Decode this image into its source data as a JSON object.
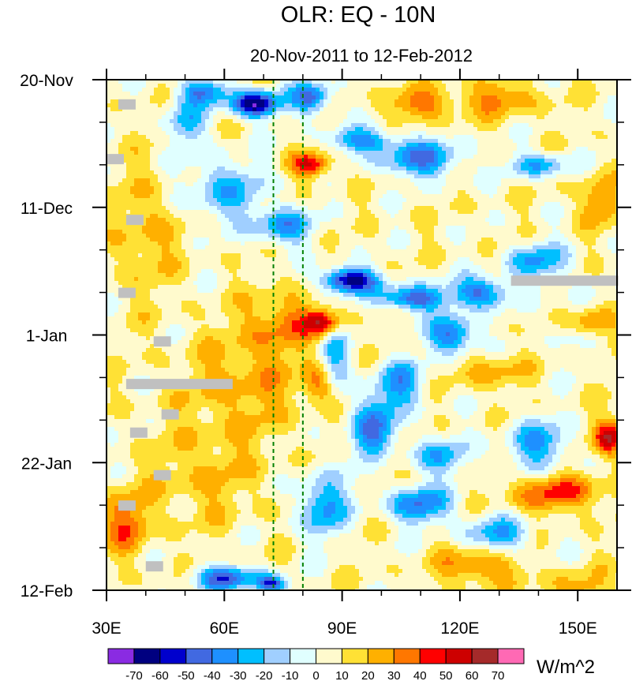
{
  "chart_data": {
    "type": "heatmap",
    "title": "OLR: EQ - 10N",
    "subtitle": "20-Nov-2011 to 12-Feb-2012",
    "x_axis": {
      "range": [
        30,
        160
      ],
      "ticks": [
        30,
        60,
        90,
        120,
        150
      ],
      "tick_labels": [
        "30E",
        "60E",
        "90E",
        "120E",
        "150E"
      ]
    },
    "y_axis": {
      "range_days": [
        0,
        84
      ],
      "ticks": [
        0,
        21,
        42,
        63,
        84
      ],
      "tick_labels": [
        "20-Nov",
        "11-Dec",
        "1-Jan",
        "22-Jan",
        "12-Feb"
      ],
      "orientation": "time increases downward"
    },
    "reference_lines_lon": [
      72.5,
      80
    ],
    "colorbar": {
      "units": "W/m^2",
      "levels": [
        -70,
        -60,
        -50,
        -40,
        -30,
        -20,
        -10,
        0,
        10,
        20,
        30,
        40,
        50,
        60,
        70
      ],
      "colors": [
        "#8a2be2",
        "#000080",
        "#0000cd",
        "#4169e1",
        "#1e90ff",
        "#00bfff",
        "#a0cfff",
        "#e0ffff",
        "#fffacd",
        "#ffe135",
        "#ffb000",
        "#ff7700",
        "#ff0000",
        "#cd0000",
        "#a52a2a",
        "#ff69b4"
      ]
    },
    "anomaly_features": [
      {
        "lon": 68,
        "day": 4,
        "value": -75,
        "sx": 6,
        "sy": 2.2
      },
      {
        "lon": 82,
        "day": 3,
        "value": -50,
        "sx": 5,
        "sy": 2.5
      },
      {
        "lon": 55,
        "day": 2,
        "value": -45,
        "sx": 6,
        "sy": 2
      },
      {
        "lon": 50,
        "day": 7,
        "value": -30,
        "sx": 5,
        "sy": 4
      },
      {
        "lon": 95,
        "day": 10,
        "value": -40,
        "sx": 8,
        "sy": 2
      },
      {
        "lon": 110,
        "day": 13,
        "value": -45,
        "sx": 10,
        "sy": 3
      },
      {
        "lon": 140,
        "day": 14,
        "value": -35,
        "sx": 7,
        "sy": 2
      },
      {
        "lon": 60,
        "day": 18,
        "value": -30,
        "sx": 10,
        "sy": 5
      },
      {
        "lon": 75,
        "day": 24,
        "value": -40,
        "sx": 7,
        "sy": 3
      },
      {
        "lon": 92,
        "day": 33,
        "value": -75,
        "sx": 7,
        "sy": 2
      },
      {
        "lon": 108,
        "day": 36,
        "value": -55,
        "sx": 8,
        "sy": 2
      },
      {
        "lon": 125,
        "day": 35,
        "value": -50,
        "sx": 7,
        "sy": 2.5
      },
      {
        "lon": 140,
        "day": 30,
        "value": -35,
        "sx": 8,
        "sy": 3
      },
      {
        "lon": 118,
        "day": 42,
        "value": -50,
        "sx": 6,
        "sy": 3
      },
      {
        "lon": 105,
        "day": 50,
        "value": -35,
        "sx": 6,
        "sy": 4
      },
      {
        "lon": 98,
        "day": 58,
        "value": -45,
        "sx": 6,
        "sy": 6
      },
      {
        "lon": 115,
        "day": 62,
        "value": -30,
        "sx": 8,
        "sy": 3
      },
      {
        "lon": 85,
        "day": 70,
        "value": -40,
        "sx": 6,
        "sy": 5
      },
      {
        "lon": 110,
        "day": 70,
        "value": -45,
        "sx": 8,
        "sy": 3
      },
      {
        "lon": 130,
        "day": 75,
        "value": -35,
        "sx": 8,
        "sy": 3
      },
      {
        "lon": 60,
        "day": 82,
        "value": -50,
        "sx": 8,
        "sy": 2
      },
      {
        "lon": 72,
        "day": 83,
        "value": -55,
        "sx": 4,
        "sy": 1.5
      },
      {
        "lon": 140,
        "day": 60,
        "value": -35,
        "sx": 8,
        "sy": 4
      },
      {
        "lon": 150,
        "day": 40,
        "value": -25,
        "sx": 6,
        "sy": 4
      },
      {
        "lon": 88,
        "day": 46,
        "value": -30,
        "sx": 4,
        "sy": 5
      },
      {
        "lon": 82,
        "day": 14,
        "value": 45,
        "sx": 5,
        "sy": 2
      },
      {
        "lon": 110,
        "day": 4,
        "value": 30,
        "sx": 8,
        "sy": 2.5
      },
      {
        "lon": 130,
        "day": 3,
        "value": 25,
        "sx": 10,
        "sy": 3
      },
      {
        "lon": 155,
        "day": 20,
        "value": 25,
        "sx": 5,
        "sy": 4
      },
      {
        "lon": 40,
        "day": 25,
        "value": 18,
        "sx": 8,
        "sy": 10
      },
      {
        "lon": 75,
        "day": 40,
        "value": 25,
        "sx": 10,
        "sy": 5
      },
      {
        "lon": 85,
        "day": 40,
        "value": 45,
        "sx": 4,
        "sy": 2
      },
      {
        "lon": 65,
        "day": 50,
        "value": 20,
        "sx": 15,
        "sy": 8
      },
      {
        "lon": 84,
        "day": 50,
        "value": 30,
        "sx": 4,
        "sy": 3
      },
      {
        "lon": 153,
        "day": 40,
        "value": 50,
        "sx": 6,
        "sy": 2.5
      },
      {
        "lon": 128,
        "day": 48,
        "value": 20,
        "sx": 8,
        "sy": 3
      },
      {
        "lon": 158,
        "day": 59,
        "value": 50,
        "sx": 4,
        "sy": 3
      },
      {
        "lon": 145,
        "day": 68,
        "value": 35,
        "sx": 12,
        "sy": 3
      },
      {
        "lon": 35,
        "day": 73,
        "value": 30,
        "sx": 6,
        "sy": 5
      },
      {
        "lon": 55,
        "day": 65,
        "value": 15,
        "sx": 15,
        "sy": 8
      },
      {
        "lon": 125,
        "day": 80,
        "value": 30,
        "sx": 10,
        "sy": 3
      },
      {
        "lon": 100,
        "day": 63,
        "value": 20,
        "sx": 5,
        "sy": 3
      },
      {
        "lon": 150,
        "day": 84,
        "value": 20,
        "sx": 8,
        "sy": 3
      }
    ],
    "missing_data_lon_day": [
      [
        33,
        4
      ],
      [
        30,
        13
      ],
      [
        35,
        23
      ],
      [
        33,
        35
      ],
      [
        42,
        43
      ],
      [
        35,
        50
      ],
      [
        36,
        58
      ],
      [
        44,
        55
      ],
      [
        42,
        65
      ],
      [
        33,
        70
      ],
      [
        40,
        80
      ],
      [
        133,
        33
      ]
    ]
  }
}
